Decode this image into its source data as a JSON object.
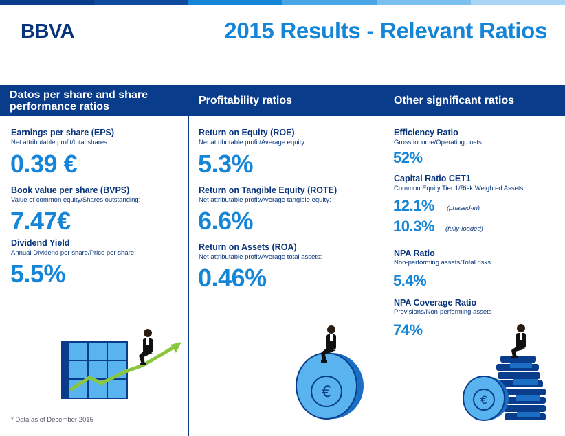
{
  "header": {
    "logo": "BBVA",
    "title": "2015 Results - Relevant Ratios"
  },
  "colors": {
    "navy": "#0a3c8c",
    "accent_blue": "#1585d8",
    "light_blue": "#59b3ee",
    "green": "#8cc63e"
  },
  "columns": [
    {
      "heading": "Datos per share and share performance ratios",
      "metrics": [
        {
          "name": "Earnings per share (EPS)",
          "desc": "Net attributable profit/total shares:",
          "value": "0.39 €"
        },
        {
          "name": "Book value per share (BVPS)",
          "desc": "Value of common equity/Shares outstanding:",
          "value": "7.47€"
        },
        {
          "name": "Dividend Yield",
          "desc": "Annual Dividend per share/Price per share:",
          "value": "5.5%"
        }
      ]
    },
    {
      "heading": "Profitability ratios",
      "metrics": [
        {
          "name": "Return on Equity (ROE)",
          "desc": "Net attributable profit/Average equity:",
          "value": "5.3%"
        },
        {
          "name": "Return on Tangible Equity (ROTE)",
          "desc": "Net attributable profit/Average tangible equity:",
          "value": "6.6%"
        },
        {
          "name": "Return on Assets (ROA)",
          "desc": "Net attributable profit/Average total assets:",
          "value": "0.46%"
        }
      ]
    },
    {
      "heading": "Other significant ratios",
      "metrics": [
        {
          "name": "Efficiency Ratio",
          "desc": "Gross income/Operating costs:",
          "value": "52%"
        },
        {
          "name": "Capital Ratio CET1",
          "desc": "Common Equity Tier 1/Risk Weighted Assets:",
          "value": "12.1%",
          "note": "(phased-in)",
          "value2": "10.3%",
          "note2": "(fully-loaded)"
        },
        {
          "name": "NPA Ratio",
          "desc": "Non-performing assets/Total risks",
          "value": "5.4%"
        },
        {
          "name": "NPA Coverage Ratio",
          "desc": "Provisions/Non-performing assets",
          "value": "74%"
        }
      ]
    }
  ],
  "footnote": "* Data as of December 2015"
}
